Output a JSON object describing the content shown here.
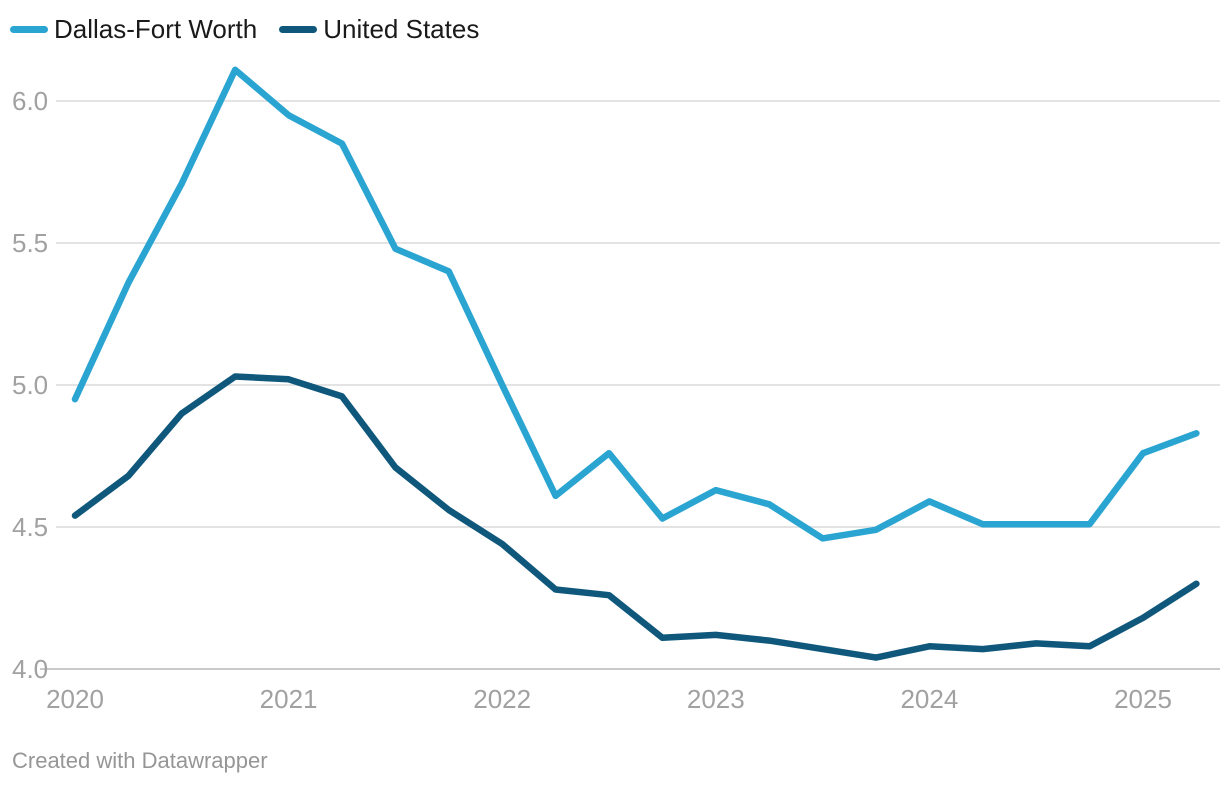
{
  "legend": {
    "items": [
      {
        "label": "Dallas-Fort Worth",
        "color": "#2aa4d1"
      },
      {
        "label": "United States",
        "color": "#0f587c"
      }
    ]
  },
  "footer": {
    "text": "Created with Datawrapper"
  },
  "colors": {
    "gridline": "#e3e3e3",
    "baseline": "#c9c9c9",
    "tick_label": "#a1a1a1"
  },
  "chart_data": {
    "type": "line",
    "x": [
      "2020 Q1",
      "2020 Q2",
      "2020 Q3",
      "2020 Q4",
      "2021 Q1",
      "2021 Q2",
      "2021 Q3",
      "2021 Q4",
      "2022 Q1",
      "2022 Q2",
      "2022 Q3",
      "2022 Q4",
      "2023 Q1",
      "2023 Q2",
      "2023 Q3",
      "2023 Q4",
      "2024 Q1",
      "2024 Q2",
      "2024 Q3",
      "2024 Q4",
      "2025 Q1",
      "2025 Q2"
    ],
    "series": [
      {
        "name": "Dallas-Fort Worth",
        "color": "#2aa4d1",
        "values": [
          4.95,
          5.36,
          5.71,
          6.11,
          5.95,
          5.85,
          5.48,
          5.4,
          5.0,
          4.61,
          4.76,
          4.53,
          4.63,
          4.58,
          4.46,
          4.49,
          4.59,
          4.51,
          4.51,
          4.51,
          4.76,
          4.83
        ]
      },
      {
        "name": "United States",
        "color": "#0f587c",
        "values": [
          4.54,
          4.68,
          4.9,
          5.03,
          5.02,
          4.96,
          4.71,
          4.56,
          4.44,
          4.28,
          4.26,
          4.11,
          4.12,
          4.1,
          4.07,
          4.04,
          4.08,
          4.07,
          4.09,
          4.08,
          4.18,
          4.3
        ]
      }
    ],
    "title": "",
    "xlabel": "",
    "ylabel": "",
    "x_tick_labels": [
      "2020",
      "2021",
      "2022",
      "2023",
      "2024",
      "2025"
    ],
    "y_ticks": [
      4.0,
      4.5,
      5.0,
      5.5,
      6.0
    ],
    "y_tick_labels": [
      "4.0",
      "4.5",
      "5.0",
      "5.5",
      "6.0"
    ],
    "ylim": [
      4.0,
      6.15
    ],
    "grid": "horizontal",
    "legend_position": "top-left"
  }
}
